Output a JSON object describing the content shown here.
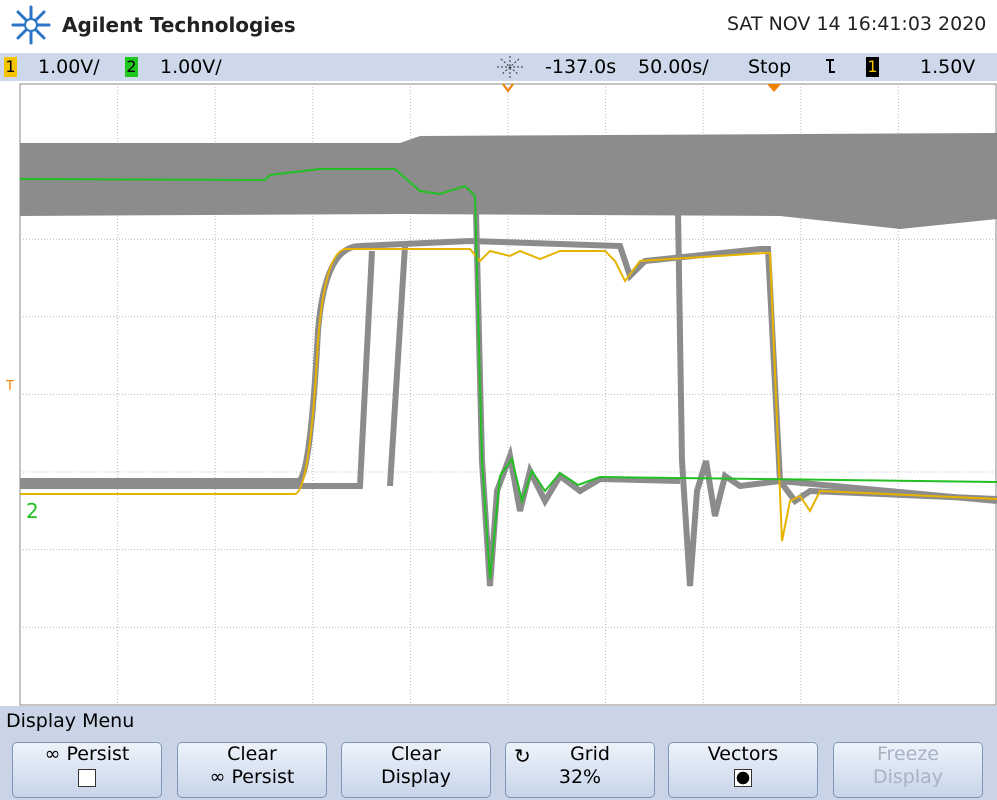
{
  "header": {
    "brand": "Agilent Technologies",
    "datetime": "SAT NOV 14 16:41:03 2020"
  },
  "status_bar": {
    "channels": [
      {
        "number": "1",
        "scale": "1.00V/"
      },
      {
        "number": "2",
        "scale": "1.00V/"
      }
    ],
    "time_offset": "-137.0s",
    "time_scale": "50.00s/",
    "run_state": "Stop",
    "trigger_source": "1",
    "trigger_level": "1.50V"
  },
  "markers": {
    "trigger": "T",
    "channel2": "2"
  },
  "menu": {
    "title": "Display Menu",
    "softkeys": [
      {
        "line1": "∞ Persist"
      },
      {
        "line1": "Clear",
        "line2": "∞ Persist"
      },
      {
        "line1": "Clear",
        "line2": "Display"
      },
      {
        "line1": "Grid",
        "line2": "32%"
      },
      {
        "line1": "Vectors"
      },
      {
        "line1": "Freeze",
        "line2": "Display"
      }
    ]
  }
}
